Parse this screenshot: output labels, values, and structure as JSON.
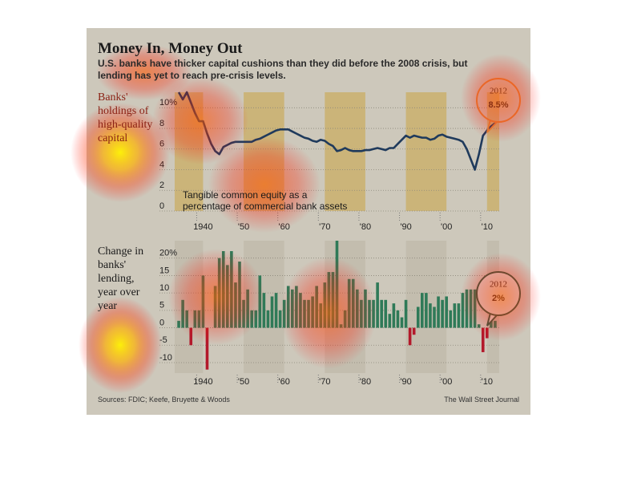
{
  "header": {
    "title": "Money In, Money Out",
    "subtitle": "U.S. banks have thicker capital cushions than they did before the 2008 crisis, but lending has yet to reach pre-crisis levels.",
    "source": "Sources: FDIC; Keefe, Bruyette & Woods",
    "credit": "The Wall Street Journal"
  },
  "chart_data": [
    {
      "type": "line",
      "label": "Banks' holdings of high-quality capital",
      "annotation": "Tangible common equity as a percentage of commercial bank assets",
      "callout": {
        "x": 2012,
        "value": 8.5,
        "value_label": "8.5%"
      },
      "color": "#1f3a5c",
      "x": [
        1934,
        1935,
        1936,
        1937,
        1938,
        1939,
        1940,
        1941,
        1942,
        1943,
        1944,
        1945,
        1946,
        1947,
        1948,
        1949,
        1950,
        1951,
        1952,
        1953,
        1954,
        1955,
        1956,
        1957,
        1958,
        1959,
        1960,
        1961,
        1962,
        1963,
        1964,
        1965,
        1966,
        1967,
        1968,
        1969,
        1970,
        1971,
        1972,
        1973,
        1974,
        1975,
        1976,
        1977,
        1978,
        1979,
        1980,
        1981,
        1982,
        1983,
        1984,
        1985,
        1986,
        1987,
        1988,
        1989,
        1990,
        1991,
        1992,
        1993,
        1994,
        1995,
        1996,
        1997,
        1998,
        1999,
        2000,
        2001,
        2002,
        2003,
        2004,
        2005,
        2006,
        2007,
        2008,
        2009,
        2010,
        2011,
        2012
      ],
      "values": [
        11.5,
        10.8,
        11.5,
        10.5,
        9.5,
        8.7,
        8.7,
        7.5,
        6.5,
        5.8,
        5.5,
        6.2,
        6.4,
        6.6,
        6.7,
        6.7,
        6.7,
        6.7,
        6.7,
        6.9,
        7.0,
        7.2,
        7.4,
        7.6,
        7.8,
        7.9,
        7.9,
        7.9,
        7.7,
        7.5,
        7.3,
        7.1,
        7.0,
        6.8,
        6.7,
        6.9,
        6.8,
        6.5,
        6.3,
        5.8,
        5.9,
        6.1,
        5.9,
        5.8,
        5.8,
        5.8,
        5.9,
        5.9,
        6.0,
        6.1,
        6.0,
        5.9,
        6.1,
        6.1,
        6.5,
        6.9,
        7.3,
        7.1,
        7.3,
        7.2,
        7.1,
        7.1,
        6.9,
        7.0,
        7.3,
        7.4,
        7.2,
        7.1,
        7.0,
        6.9,
        6.7,
        6.0,
        5.0,
        4.0,
        5.5,
        7.3,
        7.8,
        8.2,
        8.5
      ],
      "xlim": [
        1933,
        2013
      ],
      "xticks": [
        1940,
        {
          "value": 1950,
          "label": "'50"
        },
        {
          "value": 1960,
          "label": "'60"
        },
        {
          "value": 1970,
          "label": "'70"
        },
        {
          "value": 1980,
          "label": "'80"
        },
        {
          "value": 1990,
          "label": "'90"
        },
        {
          "value": 2000,
          "label": "'00"
        },
        {
          "value": 2010,
          "label": "'10"
        }
      ],
      "ylim": [
        0,
        11.5
      ],
      "yticks": [
        0,
        2,
        4,
        6,
        8,
        {
          "value": 10,
          "label": "10%"
        }
      ],
      "grid": true
    },
    {
      "type": "bar",
      "label": "Change in banks' lending, year over year",
      "callout": {
        "x": 2012,
        "value": 2,
        "value_label": "2%"
      },
      "color": "#2f7a58",
      "negative_color": "#b3192b",
      "x": [
        1934,
        1935,
        1936,
        1937,
        1938,
        1939,
        1940,
        1941,
        1942,
        1943,
        1944,
        1945,
        1946,
        1947,
        1948,
        1949,
        1950,
        1951,
        1952,
        1953,
        1954,
        1955,
        1956,
        1957,
        1958,
        1959,
        1960,
        1961,
        1962,
        1963,
        1964,
        1965,
        1966,
        1967,
        1968,
        1969,
        1970,
        1971,
        1972,
        1973,
        1974,
        1975,
        1976,
        1977,
        1978,
        1979,
        1980,
        1981,
        1982,
        1983,
        1984,
        1985,
        1986,
        1987,
        1988,
        1989,
        1990,
        1991,
        1992,
        1993,
        1994,
        1995,
        1996,
        1997,
        1998,
        1999,
        2000,
        2001,
        2002,
        2003,
        2004,
        2005,
        2006,
        2007,
        2008,
        2009,
        2010,
        2011,
        2012
      ],
      "values": [
        2,
        8,
        5,
        -5,
        5,
        5,
        15,
        -12,
        0,
        12,
        20,
        22,
        18,
        22,
        13,
        19,
        8,
        11,
        5,
        5,
        15,
        10,
        5,
        9,
        10,
        5,
        8,
        12,
        11,
        12,
        10,
        8,
        8,
        9,
        12,
        7,
        13,
        16,
        16,
        25,
        1,
        5,
        14,
        14,
        11,
        8,
        11,
        8,
        8,
        13,
        8,
        8,
        4,
        7,
        5,
        3,
        8,
        -5,
        -2,
        6,
        10,
        10,
        7,
        6,
        9,
        8,
        9,
        5,
        7,
        7,
        10,
        11,
        11,
        11,
        1,
        -7,
        -3,
        5,
        2
      ],
      "xlim": [
        1933,
        2013
      ],
      "xticks": [
        1940,
        {
          "value": 1950,
          "label": "'50"
        },
        {
          "value": 1960,
          "label": "'60"
        },
        {
          "value": 1970,
          "label": "'70"
        },
        {
          "value": 1980,
          "label": "'80"
        },
        {
          "value": 1990,
          "label": "'90"
        },
        {
          "value": 2000,
          "label": "'00"
        },
        {
          "value": 2010,
          "label": "'10"
        }
      ],
      "ylim": [
        -13,
        25
      ],
      "yticks": [
        -10,
        -5,
        0,
        5,
        10,
        15,
        {
          "value": 20,
          "label": "20%"
        }
      ],
      "grid": true
    }
  ]
}
